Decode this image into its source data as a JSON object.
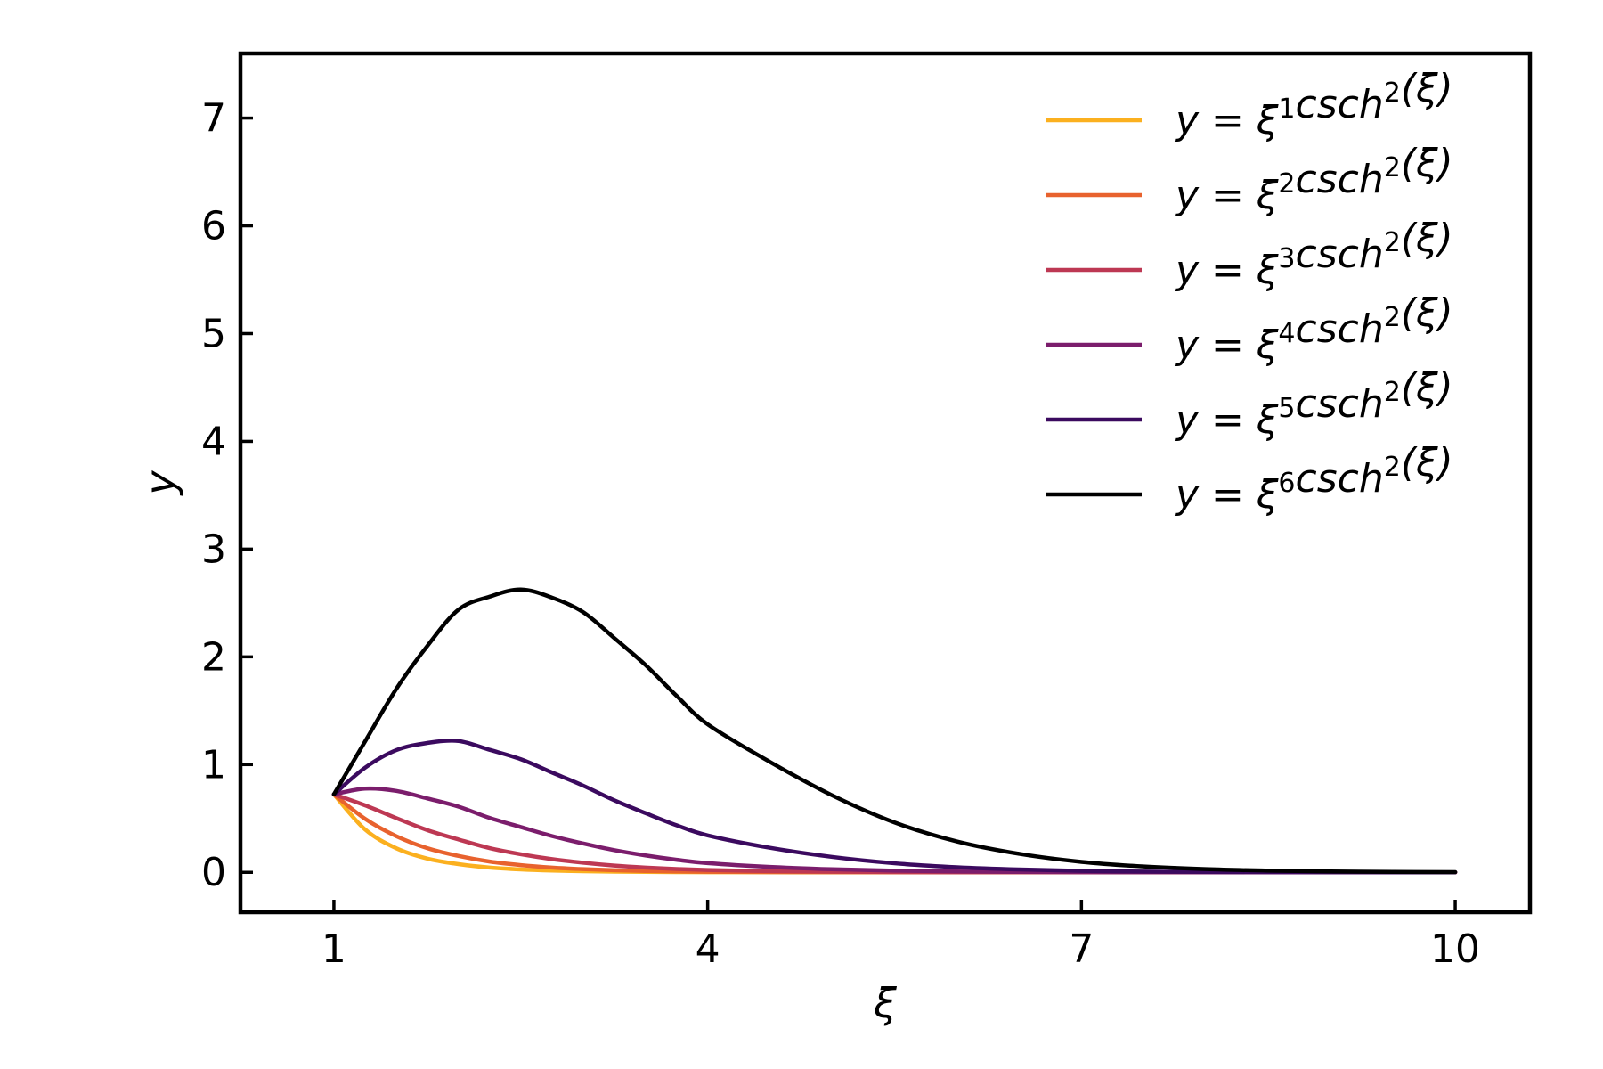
{
  "chart_data": {
    "type": "line",
    "xlabel": "ξ",
    "ylabel": "y",
    "xlim": [
      0.25,
      10.6
    ],
    "ylim": [
      -0.37,
      7.6
    ],
    "xticks": [
      "1",
      "4",
      "7",
      "10"
    ],
    "yticks": [
      "0",
      "1",
      "2",
      "3",
      "4",
      "5",
      "6",
      "7"
    ],
    "grid": false,
    "legend_position": "top-right",
    "x": [
      1.0,
      1.25,
      1.5,
      1.75,
      2.0,
      2.25,
      2.5,
      2.75,
      3.0,
      3.25,
      3.5,
      3.75,
      4.0,
      4.5,
      5.0,
      5.5,
      6.0,
      6.5,
      7.0,
      7.5,
      8.0,
      8.5,
      9.0,
      9.5,
      10.0
    ],
    "series": [
      {
        "name": "y = ξ¹csch²(ξ)",
        "legend": {
          "prefix": "y = ξ",
          "exp": "1",
          "mid": "csch",
          "exp2": "2",
          "suffix": "(ξ)"
        },
        "color": "#fbb01f",
        "values": [
          0.724,
          0.398,
          0.224,
          0.128,
          0.0762,
          0.0444,
          0.0269,
          0.0162,
          0.00994,
          0.00601,
          0.00365,
          0.00221,
          0.00134,
          0.000556,
          0.000227,
          9.18e-05,
          3.69e-05,
          1.48e-05,
          5.82e-06,
          2.29e-06,
          9e-07,
          3.5e-07,
          1.4e-07,
          5e-08,
          2e-08
        ]
      },
      {
        "name": "y = ξ²csch²(ξ)",
        "legend": {
          "prefix": "y = ξ",
          "exp": "2",
          "mid": "csch",
          "exp2": "2",
          "suffix": "(ξ)"
        },
        "color": "#e8622e",
        "values": [
          0.724,
          0.497,
          0.336,
          0.224,
          0.152,
          0.0999,
          0.0672,
          0.0446,
          0.0298,
          0.0195,
          0.0128,
          0.00829,
          0.00537,
          0.0025,
          0.00114,
          0.000505,
          0.000221,
          9.61e-05,
          4.07e-05,
          1.72e-05,
          7.2e-06,
          3e-06,
          1.2e-06,
          5e-07,
          2e-07
        ]
      },
      {
        "name": "y = ξ³csch²(ξ)",
        "legend": {
          "prefix": "y = ξ",
          "exp": "3",
          "mid": "csch",
          "exp2": "2",
          "suffix": "(ξ)"
        },
        "color": "#bd3853",
        "values": [
          0.724,
          0.622,
          0.504,
          0.392,
          0.305,
          0.225,
          0.168,
          0.123,
          0.0894,
          0.0634,
          0.0448,
          0.0311,
          0.0215,
          0.0113,
          0.00571,
          0.00278,
          0.00133,
          0.000625,
          0.000285,
          0.000129,
          5.76e-05,
          2.54e-05,
          1.12e-05,
          4.9e-06,
          2.1e-06
        ]
      },
      {
        "name": "y = ξ⁴csch²(ξ)",
        "legend": {
          "prefix": "y = ξ",
          "exp": "4",
          "mid": "csch",
          "exp2": "2",
          "suffix": "(ξ)"
        },
        "color": "#7b1d6c",
        "values": [
          0.724,
          0.777,
          0.756,
          0.686,
          0.61,
          0.505,
          0.42,
          0.337,
          0.268,
          0.206,
          0.157,
          0.117,
          0.0859,
          0.0506,
          0.0286,
          0.0153,
          0.00797,
          0.00406,
          0.00199,
          0.000967,
          0.000461,
          0.000216,
          0.0001,
          4.61e-05,
          2.1e-05
        ]
      },
      {
        "name": "y = ξ⁵csch²(ξ)",
        "legend": {
          "prefix": "y = ξ",
          "exp": "5",
          "mid": "csch",
          "exp2": "2",
          "suffix": "(ξ)"
        },
        "color": "#3b0a5f",
        "values": [
          0.724,
          0.971,
          1.134,
          1.201,
          1.219,
          1.137,
          1.05,
          0.927,
          0.805,
          0.669,
          0.55,
          0.437,
          0.343,
          0.228,
          0.143,
          0.0842,
          0.0478,
          0.0264,
          0.0139,
          0.00725,
          0.00369,
          0.00184,
          0.000905,
          0.000438,
          0.00021
        ]
      },
      {
        "name": "y = ξ⁶csch²(ξ)",
        "legend": {
          "prefix": "y = ξ",
          "exp": "6",
          "mid": "csch",
          "exp2": "2",
          "suffix": "(ξ)"
        },
        "color": "#000000",
        "values": [
          0.724,
          1.214,
          1.701,
          2.101,
          2.438,
          2.559,
          2.625,
          2.55,
          2.415,
          2.175,
          1.925,
          1.639,
          1.374,
          1.025,
          0.714,
          0.463,
          0.287,
          0.172,
          0.0975,
          0.0544,
          0.0295,
          0.0157,
          0.00815,
          0.00416,
          0.0021
        ]
      }
    ]
  }
}
